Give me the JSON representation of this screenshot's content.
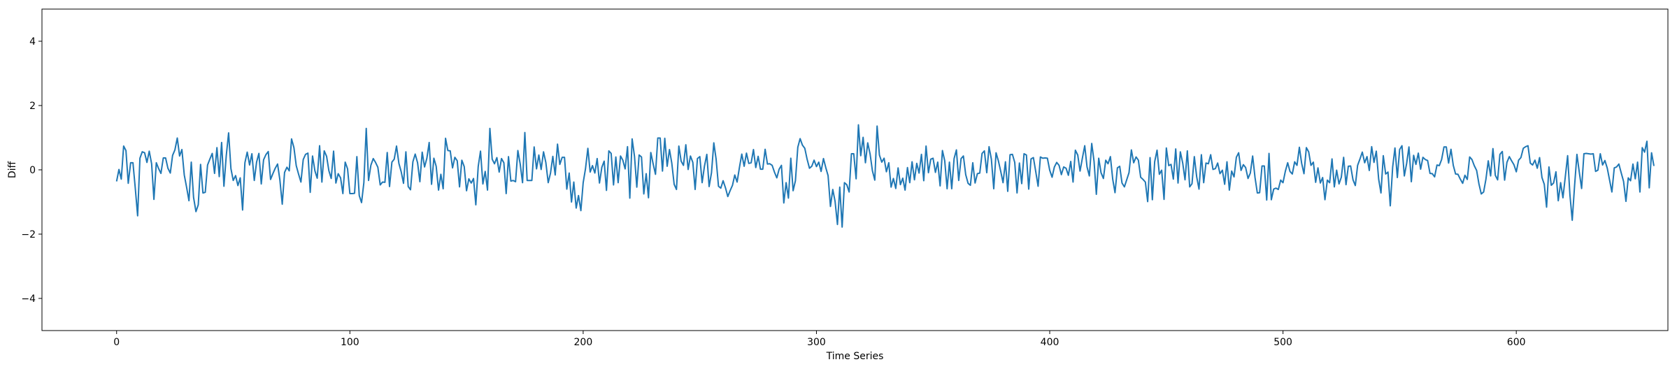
{
  "chart_data": {
    "type": "line",
    "title": "",
    "xlabel": "Time Series",
    "ylabel": "Diff",
    "xlim": [
      -32,
      665
    ],
    "ylim": [
      -5,
      5
    ],
    "xticks": [
      0,
      100,
      200,
      300,
      400,
      500,
      600
    ],
    "yticks": [
      -4,
      -2,
      0,
      2,
      4
    ],
    "grid": false,
    "legend": "none",
    "line_color": "#1f77b4",
    "series": [
      {
        "values": [
          -0.36,
          0.01,
          -0.29,
          0.74,
          0.6,
          -0.42,
          0.22,
          0.22,
          -0.56,
          -1.43,
          0.36,
          0.56,
          0.53,
          0.23,
          0.58,
          0.19,
          -0.92,
          0.22,
          0.04,
          -0.11,
          0.37,
          0.37,
          0.05,
          -0.1,
          0.45,
          0.62,
          0.99,
          0.43,
          0.63,
          -0.16,
          -0.54,
          -0.96,
          0.24,
          -0.86,
          -1.3,
          -1.09,
          0.17,
          -0.72,
          -0.7,
          0.15,
          0.34,
          0.51,
          -0.11,
          0.69,
          -0.21,
          0.85,
          -0.51,
          0.43,
          1.15,
          0.04,
          -0.33,
          -0.18,
          -0.49,
          -0.25,
          -1.25,
          0.22,
          0.55,
          0.15,
          0.5,
          -0.33,
          0.24,
          0.51,
          -0.44,
          0.31,
          0.47,
          0.57,
          -0.3,
          -0.12,
          0.05,
          0.18,
          -0.31,
          -1.07,
          -0.08,
          0.08,
          -0.03,
          0.96,
          0.69,
          0.13,
          -0.13,
          -0.38,
          0.32,
          0.48,
          0.52,
          -0.7,
          0.43,
          -0.03,
          -0.26,
          0.75,
          -0.38,
          0.59,
          0.42,
          -0.03,
          -0.27,
          0.58,
          -0.41,
          -0.12,
          -0.25,
          -0.74,
          0.24,
          0.03,
          -0.74,
          -0.74,
          -0.73,
          0.41,
          -0.8,
          -1.02,
          -0.4,
          1.29,
          -0.33,
          0.14,
          0.35,
          0.23,
          0.08,
          -0.47,
          -0.38,
          -0.39,
          0.54,
          -0.52,
          0.24,
          0.33,
          0.74,
          0.2,
          -0.06,
          -0.42,
          0.56,
          -0.52,
          -0.62,
          0.25,
          0.49,
          0.22,
          -0.37,
          0.55,
          0.09,
          0.36,
          0.85,
          -0.45,
          0.36,
          0.11,
          -0.63,
          -0.14,
          -0.59,
          0.98,
          0.6,
          0.59,
          0.06,
          0.39,
          0.28,
          -0.53,
          0.3,
          0.1,
          -0.65,
          -0.28,
          -0.41,
          -0.27,
          -1.09,
          0.1,
          0.58,
          -0.44,
          -0.05,
          -0.63,
          1.29,
          0.33,
          0.19,
          0.38,
          -0.07,
          0.35,
          0.22,
          -0.74,
          0.41,
          -0.35,
          -0.33,
          -0.37,
          0.6,
          0.19,
          -0.4,
          1.16,
          -0.33,
          -0.33,
          -0.33,
          0.71,
          0.03,
          0.46,
          0.01,
          0.56,
          0.23,
          -0.4,
          -0.1,
          0.42,
          -0.16,
          0.8,
          0.17,
          0.39,
          0.39,
          -0.6,
          -0.1,
          -1.0,
          -0.38,
          -1.19,
          -0.8,
          -1.27,
          -0.4,
          0.03,
          0.67,
          -0.07,
          0.13,
          -0.1,
          0.35,
          -0.41,
          0.08,
          0.27,
          -0.64,
          0.59,
          0.51,
          -0.47,
          0.4,
          -0.4,
          0.43,
          0.3,
          0.03,
          0.72,
          -0.88,
          0.96,
          0.42,
          -0.54,
          0.46,
          0.4,
          -0.75,
          -0.12,
          -0.87,
          0.54,
          0.18,
          -0.14,
          0.99,
          0.99,
          -0.04,
          0.98,
          0.11,
          0.63,
          0.21,
          -0.45,
          -0.61,
          0.74,
          0.27,
          0.14,
          0.78,
          0.01,
          0.43,
          0.23,
          -0.61,
          0.35,
          0.41,
          -0.4,
          0.11,
          0.48,
          -0.52,
          -0.09,
          0.84,
          0.33,
          -0.51,
          -0.57,
          -0.34,
          -0.56,
          -0.83,
          -0.65,
          -0.48,
          -0.16,
          -0.38,
          0.08,
          0.49,
          0.11,
          0.52,
          0.2,
          0.22,
          0.63,
          0.07,
          0.42,
          0.02,
          0.02,
          0.64,
          0.18,
          0.19,
          0.14,
          -0.07,
          -0.25,
          0.02,
          0.14,
          -1.03,
          -0.4,
          -0.88,
          0.36,
          -0.65,
          -0.34,
          0.7,
          0.97,
          0.77,
          0.67,
          0.33,
          0.05,
          0.11,
          0.3,
          0.1,
          0.24,
          -0.05,
          0.35,
          0.07,
          -0.18,
          -1.14,
          -0.61,
          -0.98,
          -1.7,
          -0.54,
          -1.78,
          -0.4,
          -0.46,
          -0.69,
          0.5,
          0.5,
          -0.28,
          1.4,
          0.44,
          1.01,
          0.22,
          0.84,
          0.49,
          -0.03,
          -0.32,
          1.36,
          0.46,
          0.24,
          0.36,
          -0.06,
          0.22,
          -0.54,
          -0.27,
          -0.58,
          0.06,
          -0.46,
          -0.26,
          -0.63,
          0.07,
          -0.4,
          0.25,
          -0.31,
          0.2,
          -0.1,
          0.48,
          -0.34,
          0.74,
          -0.09,
          0.33,
          0.36,
          -0.08,
          0.24,
          -0.5,
          0.6,
          0.28,
          -0.59,
          0.24,
          -0.59,
          0.35,
          0.62,
          -0.33,
          0.35,
          0.43,
          -0.15,
          -0.42,
          -0.48,
          0.22,
          -0.41,
          -0.12,
          -0.1,
          0.51,
          0.59,
          -0.09,
          0.72,
          0.33,
          -0.59,
          0.53,
          0.28,
          -0.05,
          -0.4,
          0.25,
          -0.67,
          0.47,
          0.48,
          0.23,
          -0.72,
          0.21,
          -0.43,
          0.5,
          0.46,
          -0.6,
          0.34,
          0.38,
          -0.05,
          -0.51,
          0.4,
          0.36,
          0.37,
          0.36,
          -0.01,
          -0.23,
          0.09,
          0.23,
          0.14,
          -0.15,
          0.09,
          0.05,
          -0.17,
          0.26,
          -0.38,
          0.61,
          0.46,
          -0.04,
          0.36,
          0.75,
          0.09,
          -0.19,
          0.82,
          0.27,
          -0.76,
          0.36,
          -0.09,
          -0.27,
          0.3,
          0.19,
          0.41,
          -0.29,
          -0.71,
          0.06,
          0.11,
          -0.41,
          -0.53,
          -0.31,
          -0.09,
          0.62,
          0.22,
          0.4,
          0.3,
          -0.23,
          -0.3,
          -0.38,
          -0.99,
          0.38,
          -0.93,
          0.25,
          0.61,
          -0.14,
          -0.01,
          -0.92,
          0.68,
          0.13,
          0.17,
          -0.29,
          0.65,
          -0.41,
          0.56,
          0.21,
          -0.31,
          0.59,
          -0.53,
          -0.43,
          0.41,
          -0.22,
          -0.6,
          0.47,
          -0.4,
          0.21,
          0.19,
          0.47,
          0.01,
          0.04,
          0.21,
          -0.12,
          -0.01,
          -0.45,
          0.25,
          -0.63,
          -0.04,
          -0.22,
          0.39,
          0.53,
          -0.02,
          0.16,
          0.07,
          -0.27,
          -0.1,
          0.43,
          -0.24,
          -0.72,
          -0.71,
          0.12,
          0.12,
          -0.94,
          0.51,
          -0.93,
          -0.6,
          -0.57,
          -0.61,
          -0.32,
          -0.4,
          -0.05,
          0.22,
          -0.05,
          -0.13,
          0.25,
          0.14,
          0.7,
          0.2,
          -0.12,
          0.69,
          0.56,
          0.14,
          0.24,
          -0.39,
          0.06,
          -0.41,
          -0.24,
          -0.93,
          -0.32,
          -0.4,
          0.34,
          -0.53,
          -0.01,
          -0.44,
          -0.23,
          0.39,
          -0.46,
          0.11,
          0.12,
          -0.31,
          -0.49,
          0.14,
          0.34,
          0.55,
          0.22,
          0.41,
          -0.02,
          0.72,
          0.23,
          0.58,
          -0.29,
          -0.72,
          0.44,
          -0.13,
          -0.07,
          -1.12,
          0.08,
          0.68,
          -0.24,
          0.63,
          0.75,
          -0.19,
          0.2,
          0.71,
          -0.37,
          0.45,
          0.17,
          0.52,
          0.02,
          0.39,
          0.32,
          0.29,
          -0.11,
          -0.12,
          -0.22,
          0.15,
          0.13,
          0.32,
          0.71,
          0.71,
          0.21,
          0.64,
          0.14,
          -0.13,
          -0.14,
          -0.29,
          -0.42,
          -0.17,
          -0.3,
          0.4,
          0.32,
          0.13,
          -0.02,
          -0.44,
          -0.75,
          -0.69,
          -0.29,
          0.28,
          -0.19,
          0.66,
          -0.17,
          -0.31,
          0.48,
          0.57,
          -0.32,
          0.23,
          0.41,
          0.28,
          0.16,
          -0.06,
          0.3,
          0.38,
          0.67,
          0.72,
          0.75,
          0.21,
          0.15,
          0.3,
          0.05,
          0.38,
          -0.24,
          -0.45,
          -1.16,
          0.09,
          -0.48,
          -0.41,
          -0.06,
          -0.96,
          -0.4,
          -0.87,
          -0.23,
          0.44,
          -0.78,
          -1.57,
          -0.48,
          0.48,
          -0.06,
          -0.58,
          0.5,
          0.51,
          0.5,
          0.49,
          0.5,
          -0.05,
          -0.01,
          0.5,
          0.15,
          0.29,
          0.05,
          -0.32,
          -0.69,
          0.06,
          0.09,
          0.18,
          -0.1,
          -0.36,
          -0.98,
          -0.25,
          -0.34,
          0.18,
          -0.28,
          0.24,
          -0.69,
          0.69,
          0.55,
          0.89,
          -0.56,
          0.53,
          0.12
        ]
      }
    ]
  }
}
